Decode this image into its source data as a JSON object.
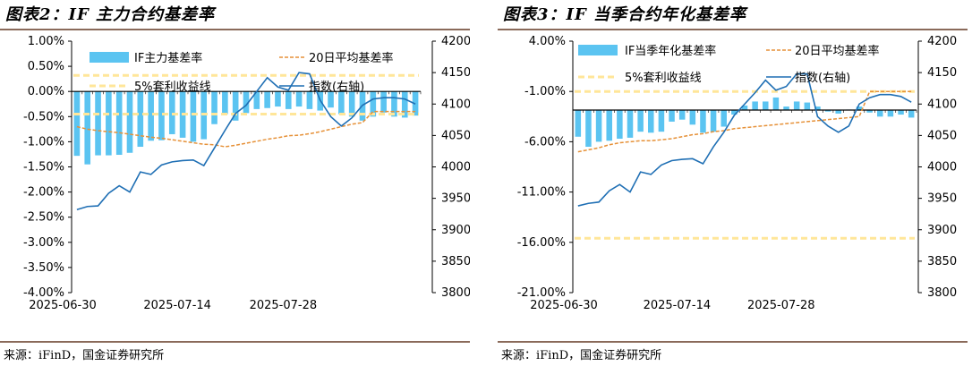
{
  "colors": {
    "bar": "#5bc4f1",
    "ma20": "#e69138",
    "carry": "#ffe699",
    "index": "#1f6fb4",
    "rule": "#8a6a5a"
  },
  "panels": [
    {
      "title": "图表2：IF 主力合约基差率",
      "source": "来源：iFinD，国金证券研究所"
    },
    {
      "title": "图表3：IF 当季合约年化基差率",
      "source": "来源：iFinD，国金证券研究所"
    }
  ],
  "chart_data": [
    {
      "type": "bar",
      "title": "IF 主力合约基差率",
      "x_tick_labels": [
        "2025-06-30",
        "2025-07-14",
        "2025-07-28"
      ],
      "x_tick_index": [
        0,
        10,
        20
      ],
      "y_left": {
        "range": [
          -4.0,
          1.0
        ],
        "ticks": [
          "1.00%",
          "0.50%",
          "0.00%",
          "-0.50%",
          "-1.00%",
          "-1.50%",
          "-2.00%",
          "-2.50%",
          "-3.00%",
          "-3.50%",
          "-4.00%"
        ]
      },
      "y_right": {
        "range": [
          3800,
          4200
        ],
        "ticks": [
          "4200",
          "4150",
          "4100",
          "4050",
          "4000",
          "3950",
          "3900",
          "3850",
          "3800"
        ]
      },
      "legend": [
        "IF主力基差率",
        "20日平均基差率",
        "5%套利收益线",
        "指数(右轴)"
      ],
      "series": [
        {
          "name": "IF主力基差率",
          "type": "bar",
          "axis": "left",
          "values": [
            -1.28,
            -1.45,
            -1.27,
            -1.27,
            -1.26,
            -1.22,
            -1.1,
            -0.98,
            -0.97,
            -0.85,
            -0.92,
            -1.0,
            -0.95,
            -0.65,
            -0.45,
            -0.58,
            -0.43,
            -0.35,
            -0.33,
            -0.3,
            -0.35,
            -0.3,
            -0.35,
            -0.38,
            -0.32,
            -0.45,
            -0.5,
            -0.58,
            -0.5,
            -0.42,
            -0.5,
            -0.52,
            -0.48
          ]
        },
        {
          "name": "20日平均基差率",
          "type": "line",
          "style": "dashed",
          "axis": "left",
          "values": [
            -0.7,
            -0.75,
            -0.78,
            -0.8,
            -0.82,
            -0.85,
            -0.88,
            -0.91,
            -0.93,
            -0.96,
            -0.99,
            -1.02,
            -1.05,
            -1.06,
            -1.1,
            -1.07,
            -1.03,
            -0.99,
            -0.95,
            -0.92,
            -0.88,
            -0.87,
            -0.84,
            -0.8,
            -0.75,
            -0.7,
            -0.65,
            -0.62,
            -0.4,
            -0.4,
            -0.4,
            -0.4,
            -0.4
          ]
        },
        {
          "name": "5%套利收益线",
          "type": "line",
          "style": "dashed",
          "axis": "left",
          "values_upper": 0.32,
          "values_lower": -0.45
        },
        {
          "name": "指数(右轴)",
          "type": "line",
          "axis": "right",
          "values": [
            3932,
            3937,
            3938,
            3958,
            3970,
            3960,
            3992,
            3988,
            4003,
            4008,
            4010,
            4011,
            4002,
            4030,
            4058,
            4085,
            4098,
            4120,
            4142,
            4127,
            4122,
            4150,
            4148,
            4106,
            4080,
            4065,
            4078,
            4098,
            4108,
            4110,
            4110,
            4108,
            4100
          ]
        }
      ]
    },
    {
      "type": "bar",
      "title": "IF 当季合约年化基差率",
      "x_tick_labels": [
        "2025-06-30",
        "2025-07-14",
        "2025-07-28"
      ],
      "x_tick_index": [
        0,
        10,
        20
      ],
      "y_left": {
        "range": [
          -21.0,
          4.0
        ],
        "ticks": [
          "4.00%",
          "-1.00%",
          "-6.00%",
          "-11.00%",
          "-16.00%",
          "-21.00%"
        ]
      },
      "y_right": {
        "range": [
          3800,
          4200
        ],
        "ticks": [
          "4200",
          "4150",
          "4100",
          "4050",
          "4000",
          "3950",
          "3900",
          "3850",
          "3800"
        ]
      },
      "legend": [
        "IF当季年化基差率",
        "20日平均基差率",
        "5%套利收益线",
        "指数(右轴)"
      ],
      "series": [
        {
          "name": "IF当季年化基差率",
          "type": "bar",
          "axis": "left",
          "values": [
            -5.5,
            -6.5,
            -6.0,
            -5.9,
            -5.7,
            -5.6,
            -5.0,
            -5.1,
            -5.0,
            -4.0,
            -3.8,
            -4.3,
            -5.1,
            -5.0,
            -4.5,
            -3.3,
            -2.4,
            -2.0,
            -2.0,
            -1.6,
            -2.5,
            -2.0,
            -2.1,
            -2.5,
            -3.0,
            -3.2,
            -2.8,
            -2.5,
            -3.1,
            -3.5,
            -3.5,
            -3.3,
            -3.6
          ]
        },
        {
          "name": "20日平均基差率",
          "type": "line",
          "style": "dashed",
          "axis": "left",
          "values": [
            -7.0,
            -6.8,
            -6.6,
            -6.3,
            -6.1,
            -6.0,
            -5.9,
            -5.9,
            -5.8,
            -5.7,
            -5.5,
            -5.3,
            -5.2,
            -5.0,
            -4.9,
            -4.7,
            -4.6,
            -4.5,
            -4.4,
            -4.3,
            -4.2,
            -4.1,
            -4.0,
            -3.9,
            -3.8,
            -3.7,
            -3.6,
            -3.5,
            -1.0,
            -1.0,
            -1.0,
            -1.0,
            -1.0
          ]
        },
        {
          "name": "5%套利收益线",
          "type": "line",
          "style": "dashed",
          "axis": "left",
          "values_upper": -1.0,
          "values_lower": -15.6
        },
        {
          "name": "指数(右轴)",
          "type": "line",
          "axis": "right",
          "values": [
            3938,
            3942,
            3944,
            3962,
            3972,
            3960,
            3992,
            3988,
            4003,
            4010,
            4012,
            4013,
            4005,
            4032,
            4055,
            4082,
            4100,
            4118,
            4138,
            4122,
            4128,
            4148,
            4148,
            4080,
            4065,
            4055,
            4065,
            4100,
            4110,
            4115,
            4115,
            4112,
            4103
          ]
        }
      ]
    }
  ]
}
